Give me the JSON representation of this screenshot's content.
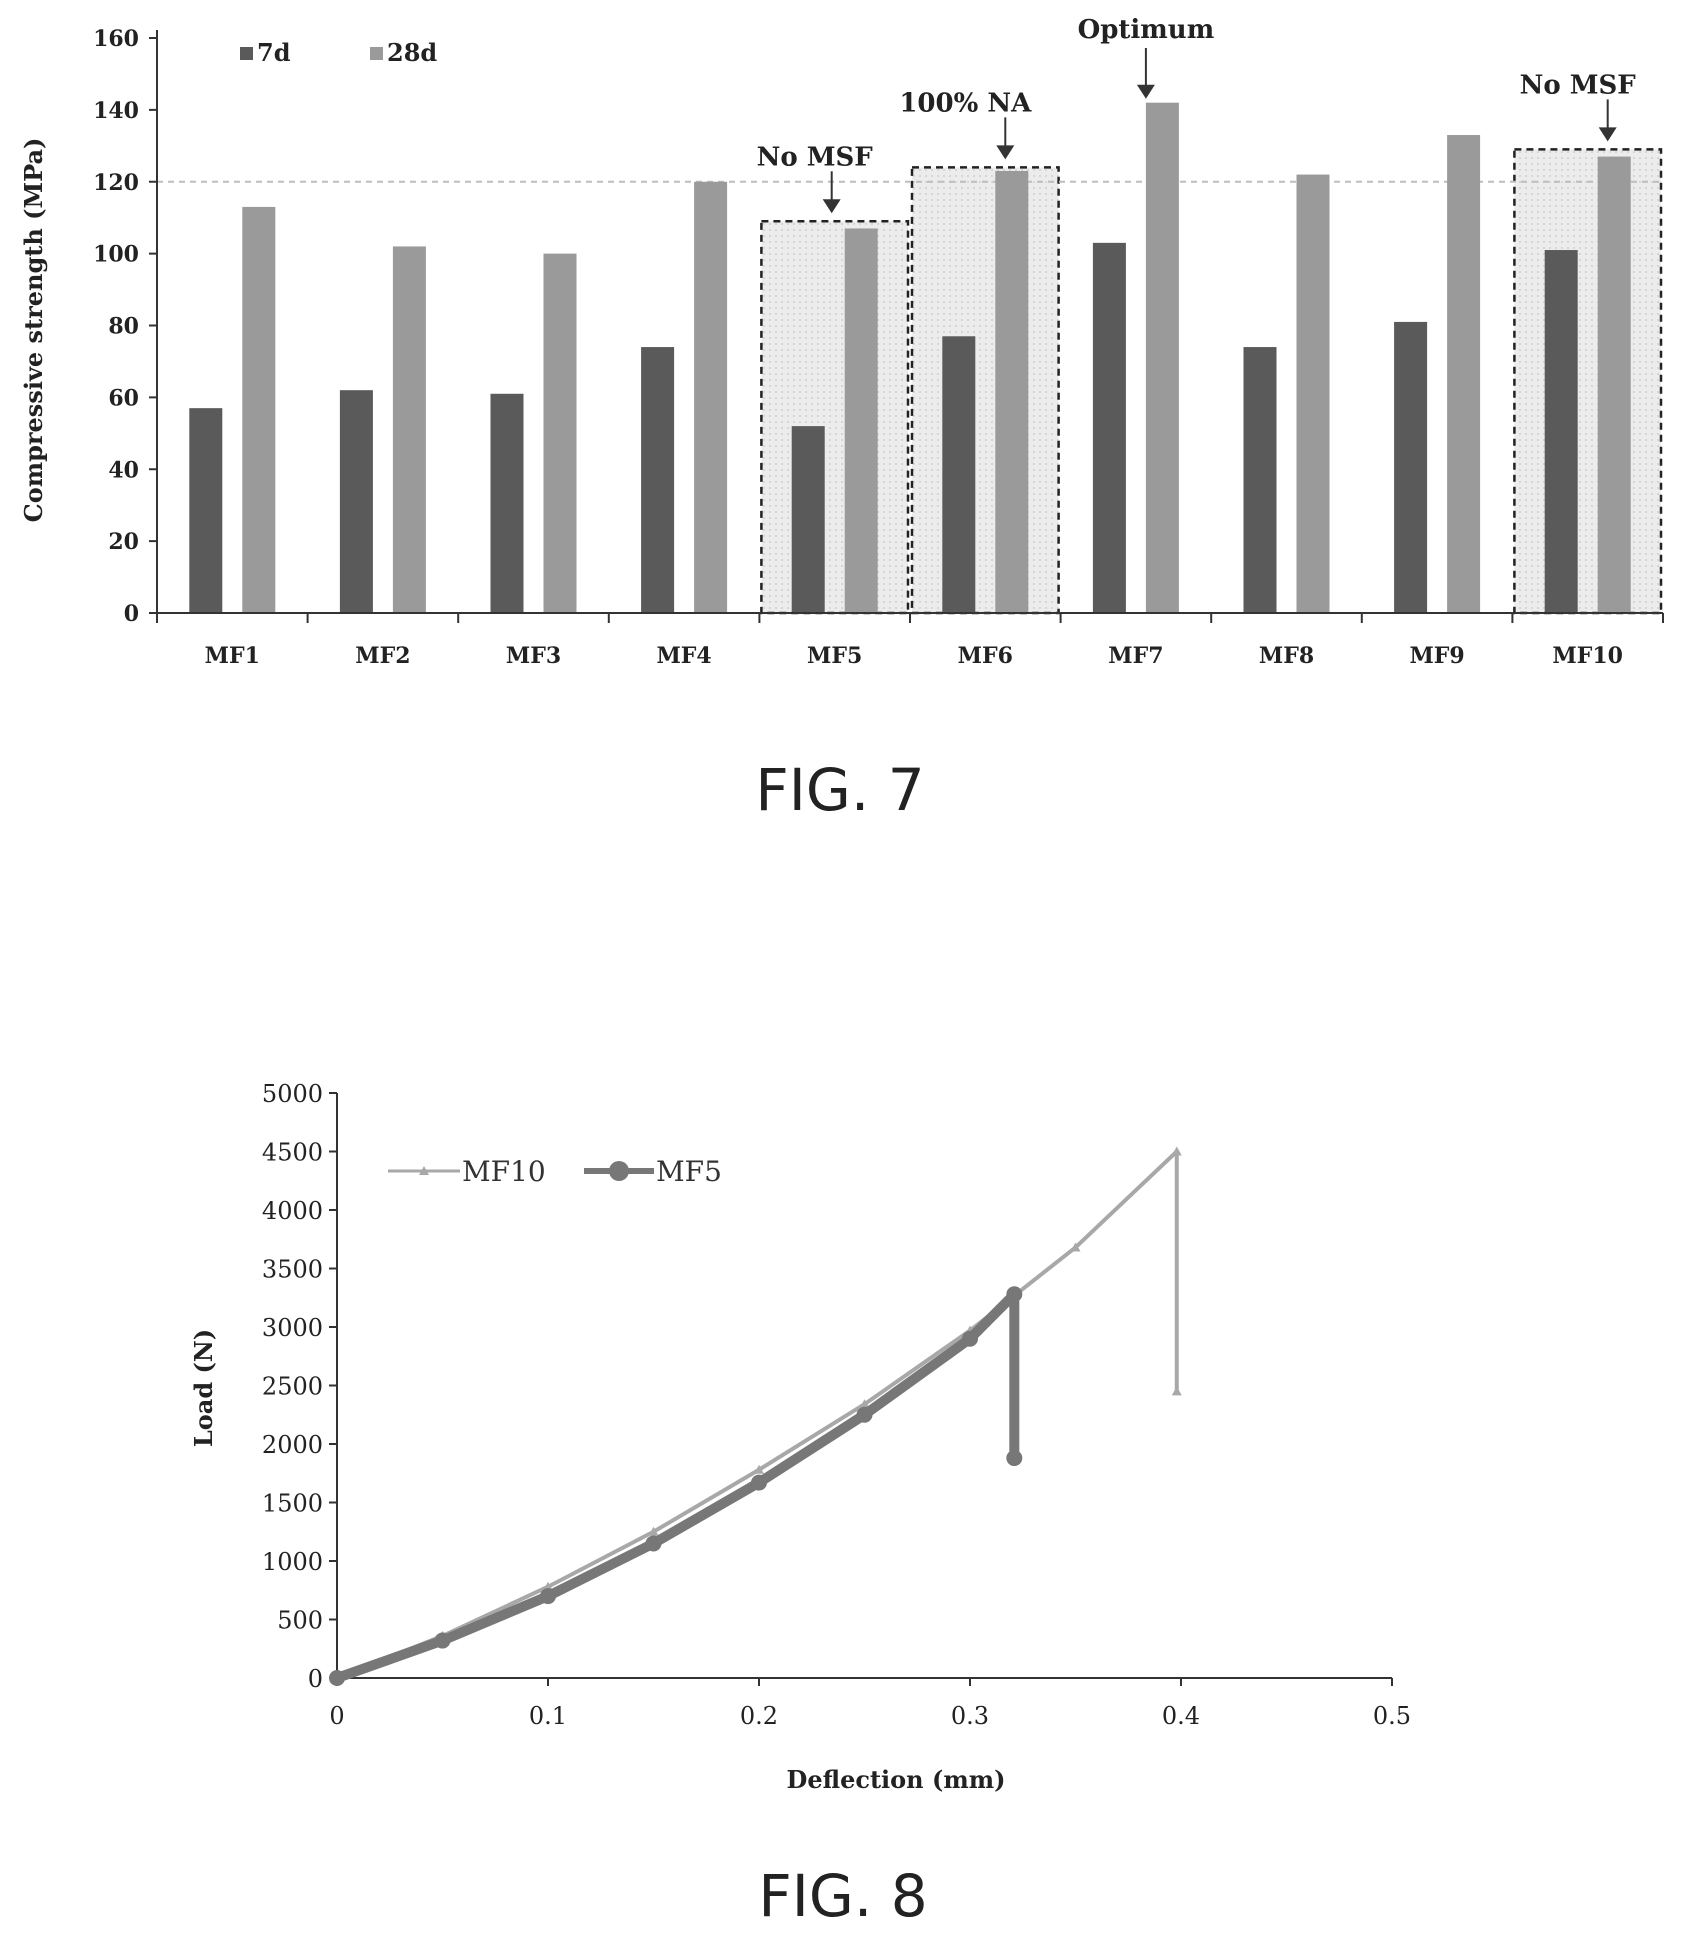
{
  "colors": {
    "bar_7d": "#5a5a5a",
    "bar_28d": "#9a9a9a",
    "highlight_fill": "#e4e4e4",
    "line_mf10": "#a8a8a8",
    "line_mf5": "#777777"
  },
  "chart_data": [
    {
      "type": "bar",
      "title": "",
      "caption": "FIG. 7",
      "ylabel": "Compressive strength (MPa)",
      "xlabel": "",
      "ylim": [
        0,
        160
      ],
      "yticks": [
        "0",
        "20",
        "40",
        "60",
        "80",
        "100",
        "120",
        "140",
        "160"
      ],
      "categories": [
        "MF1",
        "MF2",
        "MF3",
        "MF4",
        "MF5",
        "MF6",
        "MF7",
        "MF8",
        "MF9",
        "MF10"
      ],
      "legend": {
        "placement": "top-left",
        "entries": [
          "7d",
          "28d"
        ]
      },
      "series": [
        {
          "name": "7d",
          "values": [
            57,
            62,
            61,
            74,
            52,
            77,
            103,
            74,
            81,
            101
          ]
        },
        {
          "name": "28d",
          "values": [
            113,
            102,
            100,
            120,
            107,
            123,
            142,
            122,
            133,
            127
          ]
        }
      ],
      "reference_line": 120,
      "highlights": [
        {
          "category": "MF5",
          "label": "No MSF",
          "top": 109
        },
        {
          "category": "MF6",
          "label": "100% NA",
          "top": 124
        },
        {
          "category": "MF10",
          "label": "No MSF",
          "top": 129
        }
      ],
      "annotations": [
        {
          "category": "MF7",
          "label": "Optimum"
        }
      ]
    },
    {
      "type": "line",
      "title": "",
      "caption": "FIG. 8",
      "xlabel": "Deflection (mm)",
      "ylabel": "Load (N)",
      "xlim": [
        0,
        0.5
      ],
      "ylim": [
        0,
        5000
      ],
      "xticks": [
        "0",
        "0.1",
        "0.2",
        "0.3",
        "0.4",
        "0.5"
      ],
      "yticks": [
        "0",
        "500",
        "1000",
        "1500",
        "2000",
        "2500",
        "3000",
        "3500",
        "4000",
        "4500",
        "5000"
      ],
      "legend": {
        "placement": "top-left",
        "entries": [
          "MF10",
          "MF5"
        ]
      },
      "series": [
        {
          "name": "MF10",
          "x": [
            0,
            0.05,
            0.1,
            0.15,
            0.2,
            0.25,
            0.3,
            0.35,
            0.398,
            0.398
          ],
          "y": [
            0,
            360,
            780,
            1250,
            1780,
            2340,
            2970,
            3680,
            4500,
            2450
          ]
        },
        {
          "name": "MF5",
          "x": [
            0,
            0.05,
            0.1,
            0.15,
            0.2,
            0.25,
            0.3,
            0.321,
            0.321
          ],
          "y": [
            0,
            320,
            700,
            1150,
            1670,
            2250,
            2900,
            3280,
            1880
          ]
        }
      ]
    }
  ]
}
